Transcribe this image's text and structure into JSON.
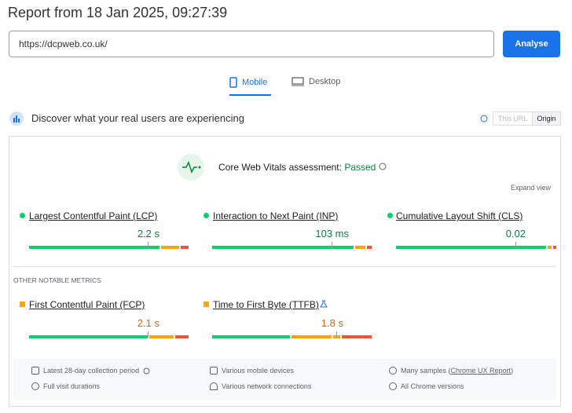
{
  "header": {
    "title": "Report from 18 Jan 2025, 09:27:39"
  },
  "url_bar": {
    "value": "https://dcpweb.co.uk/",
    "button": "Analyse"
  },
  "tabs": [
    "Mobile",
    "Desktop"
  ],
  "section": {
    "title": "Discover what your real users are experiencing",
    "toggles": [
      "This URL",
      "Origin"
    ]
  },
  "assessment": {
    "label": "Core Web Vitals assessment:",
    "status": "Passed",
    "expand": "Expand view"
  },
  "metrics": [
    {
      "name": "Largest Contentful Paint (LCP)",
      "value": "2.2 s"
    },
    {
      "name": "Interaction to Next Paint (INP)",
      "value": "103 ms"
    },
    {
      "name": "Cumulative Layout Shift (CLS)",
      "value": "0.02"
    }
  ],
  "other_metrics": {
    "title": "OTHER NOTABLE METRICS",
    "items": [
      {
        "name": "First Contentful Paint (FCP)",
        "value": "2.1 s"
      },
      {
        "name": "Time to First Byte (TTFB)",
        "value": "1.8 s"
      }
    ]
  },
  "footer": {
    "items": [
      "Latest 28-day collection period",
      "Various mobile devices",
      "Full visit durations",
      "Various network connections",
      "All Chrome versions"
    ],
    "samples": {
      "prefix": "Many samples (",
      "link": "Chrome UX Report",
      "suffix": ")"
    }
  }
}
